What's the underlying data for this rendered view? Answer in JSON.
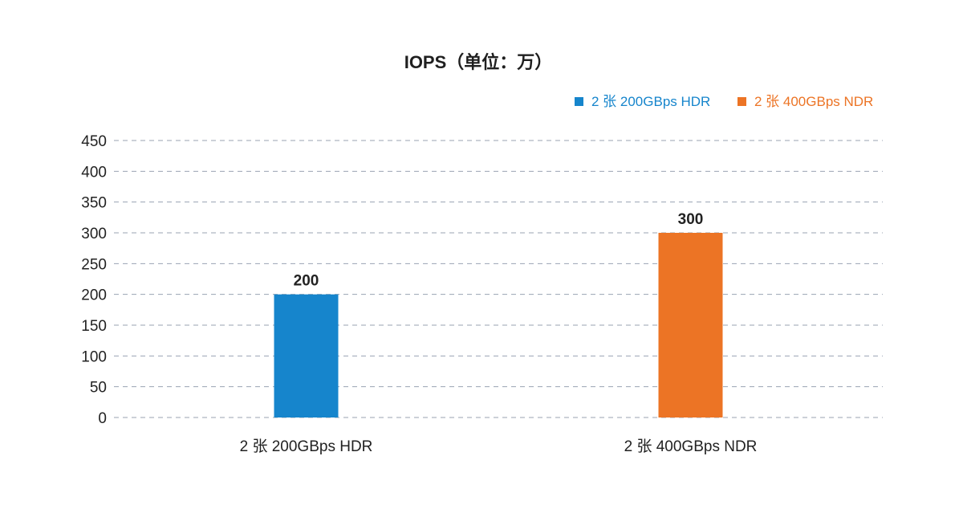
{
  "chart_data": {
    "type": "bar",
    "title": "IOPS（单位：万）",
    "categories": [
      "2 张 200GBps HDR",
      "2 张 400GBps NDR"
    ],
    "series": [
      {
        "name": "2 张 200GBps HDR",
        "color": "#1685CC",
        "values": [
          200,
          null
        ]
      },
      {
        "name": "2 张 400GBps NDR",
        "color": "#EC7425",
        "values": [
          null,
          300
        ]
      }
    ],
    "y_ticks": [
      "0",
      "50",
      "100",
      "150",
      "200",
      "250",
      "300",
      "350",
      "400",
      "450"
    ],
    "ylim": [
      0,
      450
    ],
    "grid": true,
    "legend_position": "top-right",
    "data_labels": [
      "200",
      "300"
    ],
    "colors": {
      "hdr": "#1685CC",
      "ndr": "#EC7425",
      "grid": "#9AA3B2",
      "text": "#222222"
    }
  }
}
